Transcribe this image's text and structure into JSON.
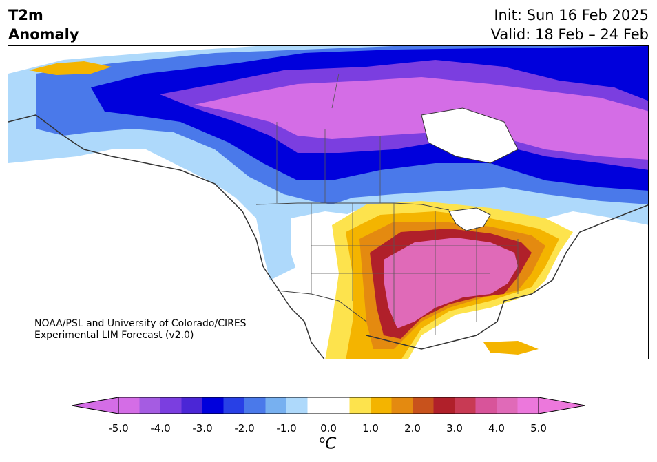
{
  "header": {
    "title_line1": "T2m",
    "title_line2": "Anomaly",
    "init": "Init: Sun 16 Feb 2025",
    "valid": "Valid: 18 Feb – 24 Feb"
  },
  "credit": {
    "line1": "NOAA/PSL and University of Colorado/CIRES",
    "line2": "Experimental LIM Forecast (v2.0)"
  },
  "colorbar": {
    "colors": [
      "#d46de6",
      "#a55ce2",
      "#7b3ee0",
      "#4b26d6",
      "#0000dc",
      "#2840e6",
      "#4a79ea",
      "#77b0f0",
      "#aed9fb",
      "#ffffff",
      "#ffffff",
      "#fde34d",
      "#f4b400",
      "#e48a10",
      "#c8521c",
      "#b0202a",
      "#c83a54",
      "#d8549a",
      "#e06ab8",
      "#ec78dc"
    ],
    "tick_labels": [
      "-5.0",
      "-4.0",
      "-3.0",
      "-2.0",
      "-1.0",
      "0.0",
      "1.0",
      "2.0",
      "3.0",
      "4.0",
      "5.0"
    ],
    "unit_base": "C",
    "unit_sup": "o"
  }
}
